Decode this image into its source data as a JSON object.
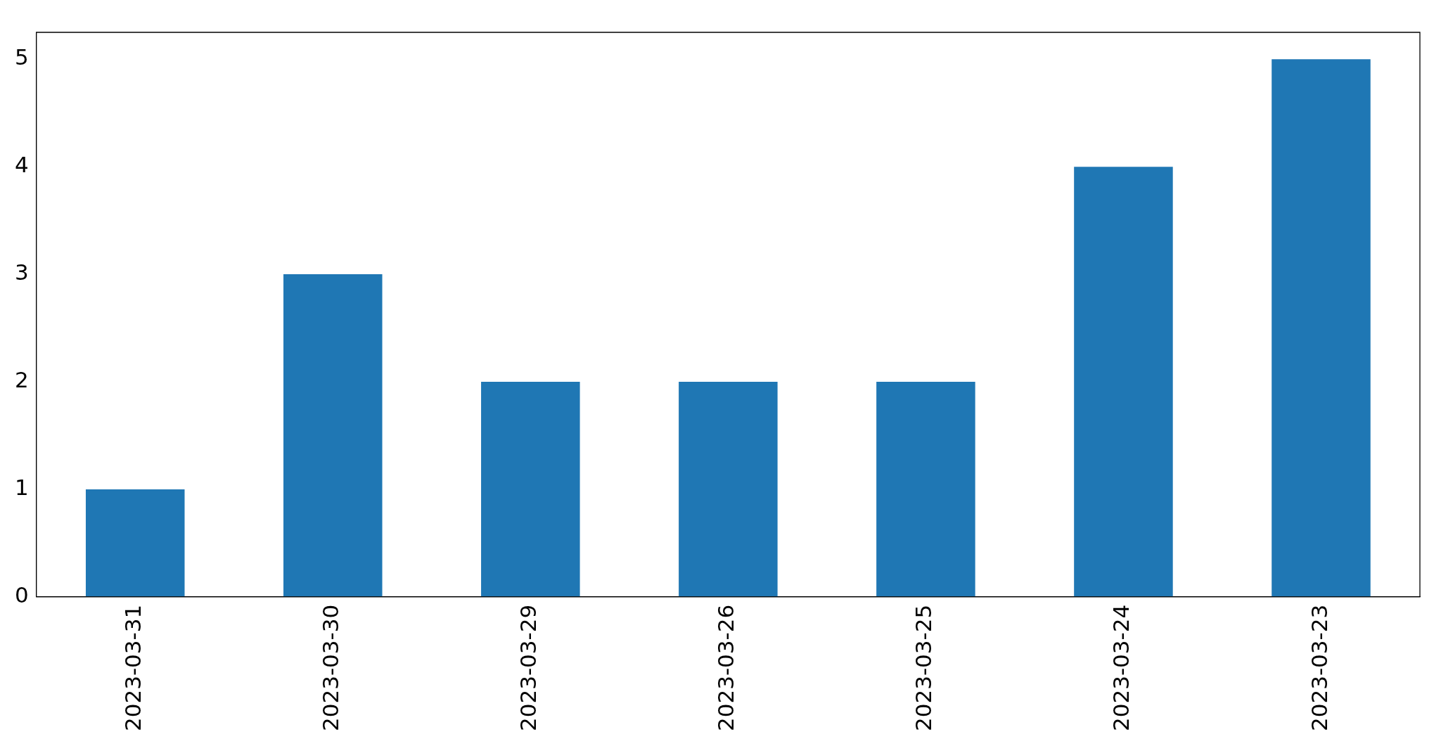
{
  "chart_data": {
    "type": "bar",
    "categories": [
      "2023-03-31",
      "2023-03-30",
      "2023-03-29",
      "2023-03-26",
      "2023-03-25",
      "2023-03-24",
      "2023-03-23"
    ],
    "values": [
      1,
      3,
      2,
      2,
      2,
      4,
      5
    ],
    "color": "#1f77b4",
    "ylim": [
      0,
      5.25
    ],
    "yticks": [
      0,
      1,
      2,
      3,
      4,
      5
    ],
    "grid": false,
    "legend": false
  }
}
